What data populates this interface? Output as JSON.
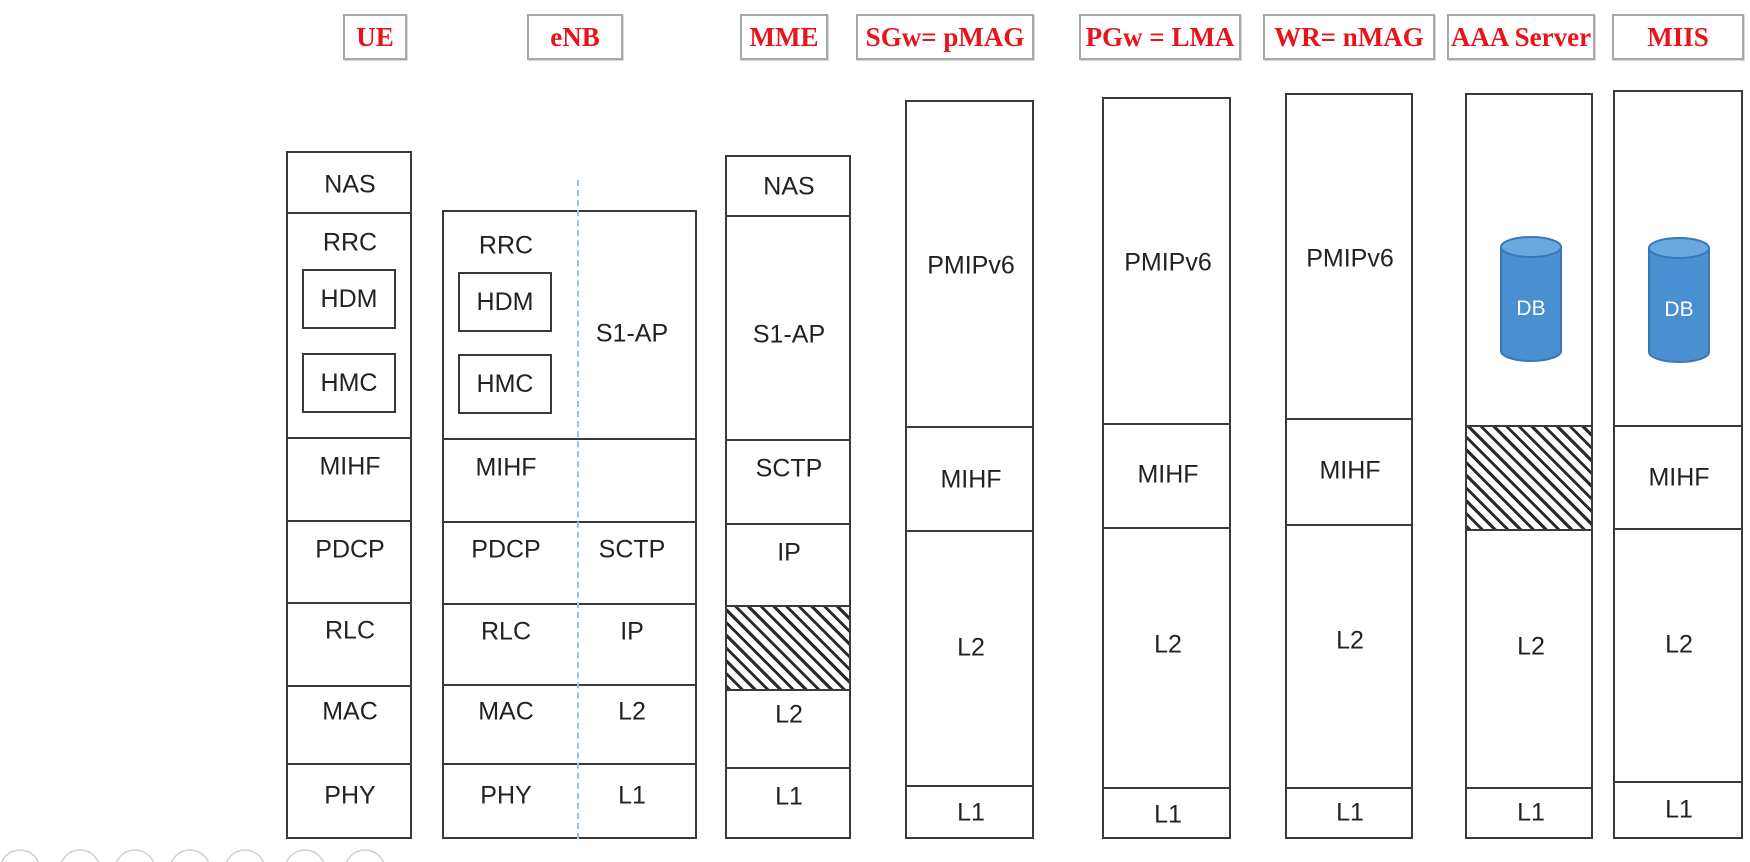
{
  "titles": {
    "ue": "UE",
    "enb": "eNB",
    "mme": "MME",
    "sgw": "SGw= pMAG",
    "pgw": "PGw = LMA",
    "wr": "WR= nMAG",
    "aaa": "AAA Server",
    "miis": "MIIS"
  },
  "ue": {
    "nas": "NAS",
    "rrc": "RRC",
    "hdm": "HDM",
    "hmc": "HMC",
    "mihf": "MIHF",
    "pdcp": "PDCP",
    "rlc": "RLC",
    "mac": "MAC",
    "phy": "PHY"
  },
  "enb": {
    "rrc": "RRC",
    "hdm": "HDM",
    "hmc": "HMC",
    "mihf": "MIHF",
    "pdcp": "PDCP",
    "rlc": "RLC",
    "mac": "MAC",
    "phy": "PHY",
    "s1ap": "S1-AP",
    "sctp": "SCTP",
    "ip": "IP",
    "l2": "L2",
    "l1": "L1"
  },
  "mme": {
    "nas": "NAS",
    "s1ap": "S1-AP",
    "sctp": "SCTP",
    "ip": "IP",
    "l2": "L2",
    "l1": "L1"
  },
  "sgw": {
    "pmip": "PMIPv6",
    "mihf": "MIHF",
    "l2": "L2",
    "l1": "L1"
  },
  "pgw": {
    "pmip": "PMIPv6",
    "mihf": "MIHF",
    "l2": "L2",
    "l1": "L1"
  },
  "wr": {
    "pmip": "PMIPv6",
    "mihf": "MIHF",
    "l2": "L2",
    "l1": "L1"
  },
  "aaa": {
    "db": "DB",
    "l2": "L2",
    "l1": "L1"
  },
  "miis": {
    "db": "DB",
    "mihf": "MIHF",
    "l2": "L2",
    "l1": "L1"
  },
  "colors": {
    "title_text": "#e8141a",
    "db_fill": "#4a8fd1",
    "dash": "#9fc1e0"
  }
}
